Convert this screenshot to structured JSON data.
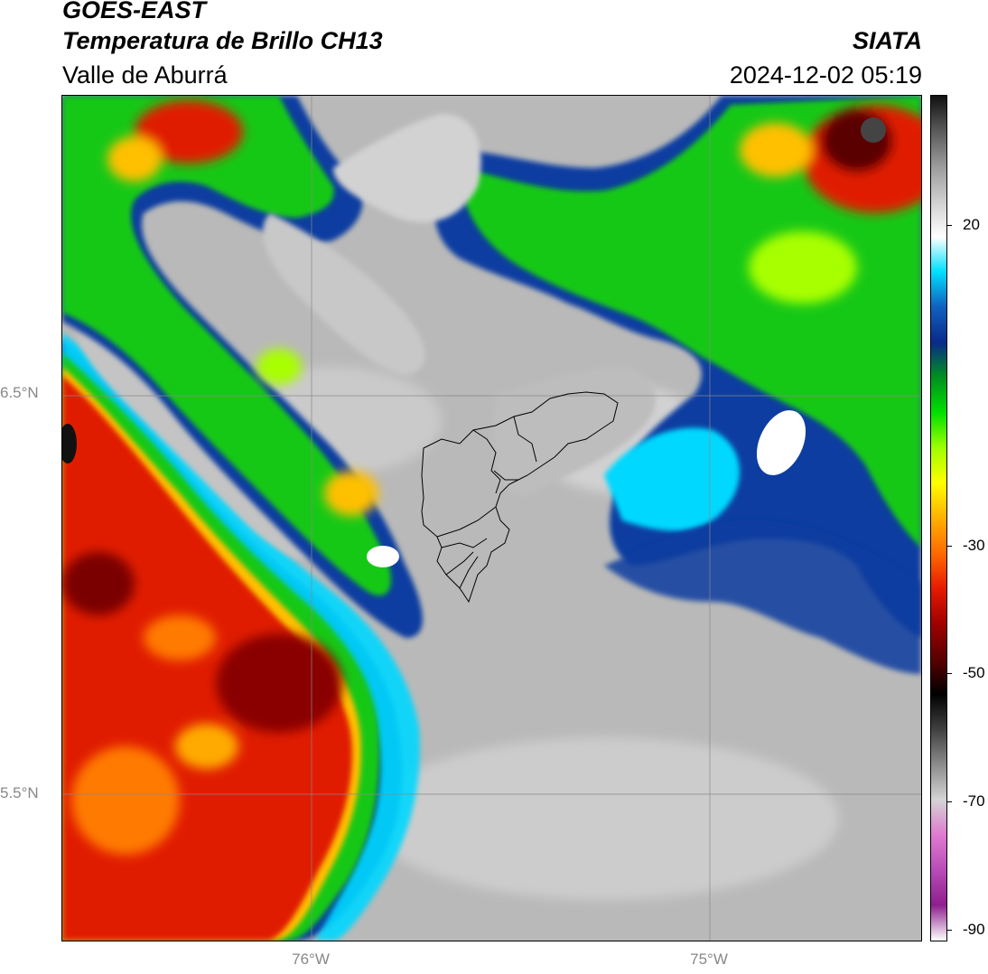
{
  "header": {
    "satellite": "GOES-EAST",
    "product": "Temperatura de Brillo CH13",
    "region": "Valle de Aburrá",
    "agency": "SIATA",
    "datetime": "2024-12-02 05:19"
  },
  "axes": {
    "lat_labels": [
      "6.5°N",
      "5.5°N"
    ],
    "lon_labels": [
      "76°W",
      "75°W"
    ]
  },
  "colorbar": {
    "tick_labels": [
      "20",
      "-30",
      "-50",
      "-70",
      "-90"
    ],
    "colors": [
      "#ffffff",
      "#8e1f8e",
      "#b84bb8",
      "#e07ad0",
      "#d4d4d4",
      "#8c8c8c",
      "#404040",
      "#000000",
      "#5a0000",
      "#a00000",
      "#e61a00",
      "#ff6a00",
      "#ffb000",
      "#ffff00",
      "#a0ff00",
      "#00e000",
      "#009020",
      "#0a2a8a",
      "#1060c0",
      "#00e0ff",
      "#ffffff",
      "#cfcfcf",
      "#9a9a9a",
      "#5a5a5a",
      "#111111"
    ]
  },
  "map": {
    "cloud_colors": {
      "warm_ground": "#bdbdbd",
      "cold_red": "#d81800",
      "cold_green": "#10c010",
      "blue_edge": "#0040a0",
      "cyan_edge": "#00d8ff"
    }
  }
}
